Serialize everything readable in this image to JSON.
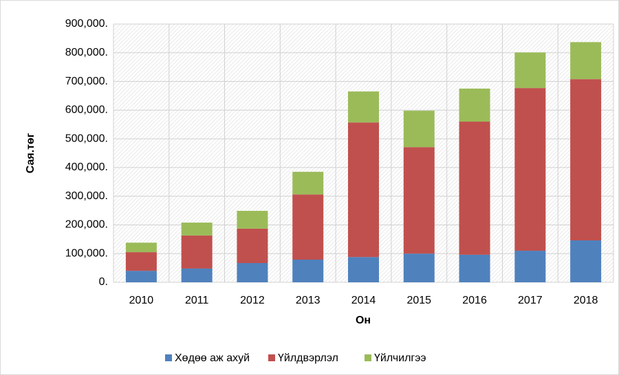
{
  "chart_data": {
    "type": "bar",
    "stacked": true,
    "x_label": "Он",
    "y_label": "Сая.төг",
    "categories": [
      "2010",
      "2011",
      "2012",
      "2013",
      "2014",
      "2015",
      "2016",
      "2017",
      "2018"
    ],
    "series": [
      {
        "name": "Хөдөө аж ахуй",
        "color": "#4f81bd",
        "values": [
          40000,
          48000,
          67000,
          79000,
          88000,
          100000,
          96000,
          110000,
          146000
        ]
      },
      {
        "name": "Үйлдвэрлэл",
        "color": "#c0504d",
        "values": [
          65000,
          115000,
          120000,
          227000,
          469000,
          371000,
          464000,
          567000,
          562000
        ]
      },
      {
        "name": "Үйлчилгээ",
        "color": "#9bbb59",
        "values": [
          33000,
          45000,
          62000,
          79000,
          108000,
          127000,
          115000,
          124000,
          129000
        ]
      }
    ],
    "ylim": [
      0,
      900000
    ],
    "yticks": [
      {
        "value": 0,
        "label": "0."
      },
      {
        "value": 100000,
        "label": "100,000."
      },
      {
        "value": 200000,
        "label": "200,000."
      },
      {
        "value": 300000,
        "label": "300,000."
      },
      {
        "value": 400000,
        "label": "400,000."
      },
      {
        "value": 500000,
        "label": "500,000."
      },
      {
        "value": 600000,
        "label": "600,000."
      },
      {
        "value": 700000,
        "label": "700,000."
      },
      {
        "value": 800000,
        "label": "800,000."
      },
      {
        "value": 900000,
        "label": "900,000."
      }
    ],
    "grid": true,
    "legend": "bottom"
  }
}
